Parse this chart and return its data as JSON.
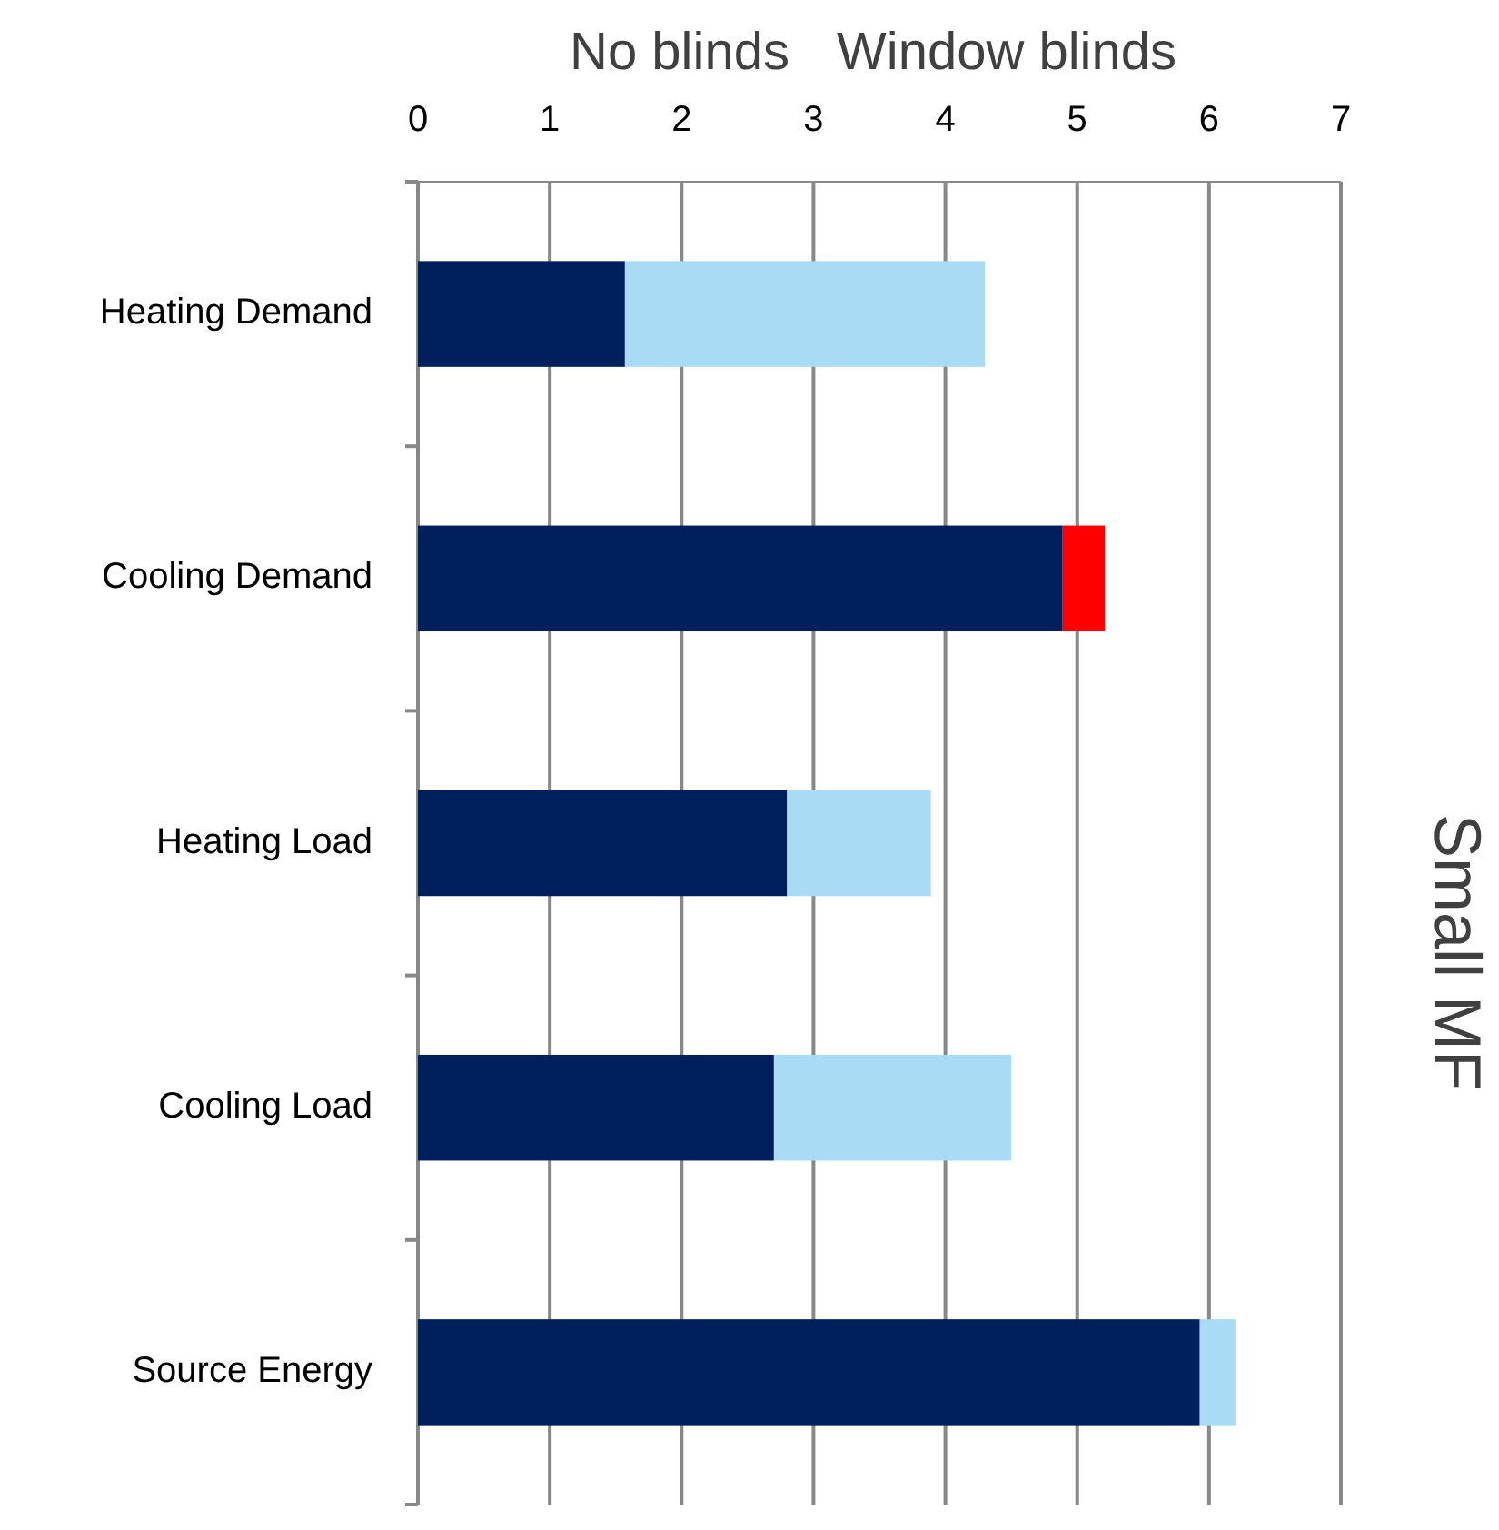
{
  "chart_data": {
    "type": "bar",
    "orientation": "horizontal",
    "stacked": true,
    "title": "Window blinds",
    "subtitle": "No blinds",
    "y2label": "Small MF",
    "categories": [
      "Heating Demand",
      "Cooling Demand",
      "Heating Load",
      "Cooling Load",
      "Source Energy"
    ],
    "series": [
      {
        "color": "#001f5c",
        "values": [
          1.57,
          4.89,
          2.8,
          2.7,
          5.93
        ]
      },
      {
        "colors": [
          "#a8dcf5",
          "#ff0000",
          "#a8dcf5",
          "#a8dcf5",
          "#a8dcf5"
        ],
        "values": [
          2.73,
          0.32,
          1.09,
          1.8,
          0.27
        ]
      }
    ],
    "xlim": [
      0,
      7
    ],
    "xticks": [
      0,
      1,
      2,
      3,
      4,
      5,
      6,
      7
    ],
    "grid": "x"
  }
}
